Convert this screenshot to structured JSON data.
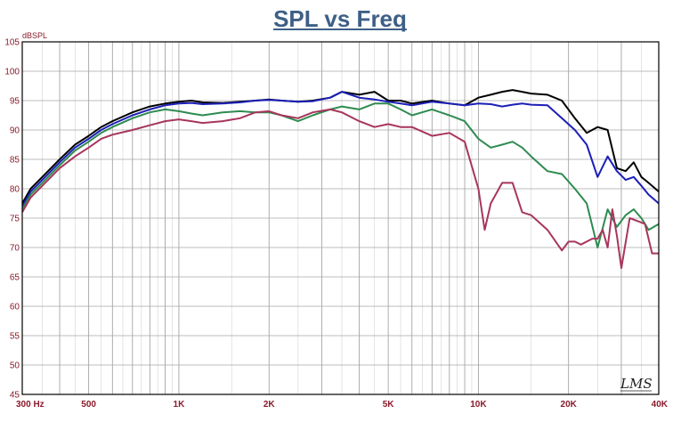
{
  "chart_data": {
    "type": "line",
    "title": "SPL vs Freq",
    "ylabel": "dBSPL",
    "xscale": "log",
    "xlim": [
      300,
      40000
    ],
    "ylim": [
      45,
      105
    ],
    "grid": true,
    "y_ticks": [
      45,
      50,
      55,
      60,
      65,
      70,
      75,
      80,
      85,
      90,
      95,
      100,
      105
    ],
    "x_tick_labels": [
      {
        "value": 300,
        "label": "300  Hz"
      },
      {
        "value": 500,
        "label": "500"
      },
      {
        "value": 1000,
        "label": "1K"
      },
      {
        "value": 2000,
        "label": "2K"
      },
      {
        "value": 5000,
        "label": "5K"
      },
      {
        "value": 10000,
        "label": "10K"
      },
      {
        "value": 20000,
        "label": "20K"
      },
      {
        "value": 40000,
        "label": "40K"
      }
    ],
    "series": [
      {
        "color": "#000000",
        "x": [
          300,
          320,
          350,
          400,
          450,
          500,
          550,
          600,
          700,
          800,
          900,
          1000,
          1100,
          1200,
          1400,
          1600,
          1800,
          2000,
          2200,
          2500,
          2800,
          3200,
          3500,
          4000,
          4500,
          5000,
          5500,
          6000,
          7000,
          8000,
          9000,
          10000,
          11000,
          12000,
          13000,
          14000,
          15000,
          17000,
          19000,
          21000,
          23000,
          25000,
          27000,
          29000,
          31000,
          33000,
          35000,
          37000,
          40000
        ],
        "y": [
          77.5,
          80,
          82,
          85,
          87.5,
          89,
          90.5,
          91.5,
          93,
          94,
          94.5,
          94.8,
          95,
          94.7,
          94.6,
          94.8,
          95,
          95.2,
          95,
          94.8,
          95,
          95.5,
          96.5,
          96,
          96.5,
          95,
          95,
          94.5,
          95,
          94.5,
          94.2,
          95.5,
          96,
          96.5,
          96.8,
          96.5,
          96.2,
          96,
          95,
          92,
          89.5,
          90.5,
          90,
          83.5,
          83,
          84.5,
          82,
          81,
          79.5
        ]
      },
      {
        "color": "#1c1fb8",
        "x": [
          300,
          320,
          350,
          400,
          450,
          500,
          550,
          600,
          700,
          800,
          900,
          1000,
          1100,
          1200,
          1400,
          1600,
          1800,
          2000,
          2200,
          2500,
          2800,
          3200,
          3500,
          4000,
          4500,
          5000,
          5500,
          6000,
          7000,
          8000,
          9000,
          10000,
          11000,
          12000,
          13000,
          14000,
          15000,
          17000,
          19000,
          21000,
          23000,
          25000,
          27000,
          29000,
          31000,
          33000,
          35000,
          37000,
          40000
        ],
        "y": [
          77,
          79.5,
          81.5,
          84.5,
          87,
          88.5,
          90,
          91,
          92.5,
          93.5,
          94.2,
          94.5,
          94.6,
          94.4,
          94.5,
          94.7,
          95,
          95.1,
          95,
          94.8,
          94.9,
          95.5,
          96.5,
          95.5,
          95.2,
          94.8,
          94.5,
          94.2,
          94.8,
          94.5,
          94.2,
          94.5,
          94.4,
          94,
          94.3,
          94.5,
          94.3,
          94.2,
          92,
          90,
          87.5,
          82,
          85.5,
          83,
          81.5,
          82,
          80.5,
          79,
          77.5
        ]
      },
      {
        "color": "#2e8b50",
        "x": [
          300,
          320,
          350,
          400,
          450,
          500,
          550,
          600,
          700,
          800,
          900,
          1000,
          1100,
          1200,
          1400,
          1600,
          1800,
          2000,
          2200,
          2500,
          2800,
          3200,
          3500,
          4000,
          4500,
          5000,
          5500,
          6000,
          7000,
          8000,
          9000,
          10000,
          11000,
          12000,
          13000,
          14000,
          15000,
          17000,
          19000,
          21000,
          23000,
          25000,
          27000,
          29000,
          31000,
          33000,
          35000,
          37000,
          40000
        ],
        "y": [
          76.5,
          79,
          81,
          84,
          86.5,
          88,
          89.5,
          90.5,
          92,
          93,
          93.5,
          93.2,
          92.8,
          92.5,
          93,
          93.2,
          93,
          93,
          92.5,
          91.5,
          92.5,
          93.5,
          94,
          93.5,
          94.5,
          94.5,
          93.5,
          92.5,
          93.5,
          92.5,
          91.5,
          88.5,
          87,
          87.5,
          88,
          87,
          85.5,
          83,
          82.5,
          80,
          77.5,
          70,
          76.5,
          73.5,
          75.5,
          76.5,
          75,
          73,
          74
        ]
      },
      {
        "color": "#a8355c",
        "x": [
          300,
          320,
          350,
          400,
          450,
          500,
          550,
          600,
          700,
          800,
          900,
          1000,
          1100,
          1200,
          1400,
          1600,
          1800,
          2000,
          2200,
          2500,
          2800,
          3200,
          3500,
          4000,
          4500,
          5000,
          5500,
          6000,
          7000,
          8000,
          9000,
          10000,
          10500,
          11000,
          12000,
          13000,
          14000,
          15000,
          17000,
          19000,
          20000,
          21000,
          22000,
          24000,
          25000,
          26000,
          27000,
          28000,
          29000,
          30000,
          32000,
          34000,
          36000,
          38000,
          40000
        ],
        "y": [
          76,
          78.5,
          80.5,
          83.5,
          85.5,
          87,
          88.5,
          89.2,
          90,
          90.8,
          91.5,
          91.8,
          91.5,
          91.2,
          91.5,
          92,
          93,
          93.2,
          92.5,
          92,
          93,
          93.5,
          93,
          91.5,
          90.5,
          91,
          90.5,
          90.5,
          89,
          89.5,
          88,
          80,
          73,
          77.5,
          81,
          81,
          76,
          75.5,
          73,
          69.5,
          71,
          71,
          70.5,
          71.5,
          71.5,
          73,
          70,
          76.5,
          72,
          66.5,
          75,
          74.5,
          74,
          69,
          69
        ]
      }
    ]
  }
}
